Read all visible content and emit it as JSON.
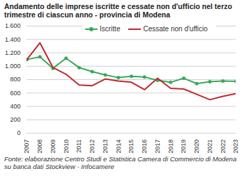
{
  "chart_data": {
    "type": "line",
    "title": "Andamento delle imprese iscritte e cessate non d'ufficio nel terzo trimestre di ciascun anno - provincia di Modena",
    "caption": "Fonte: elaborazione Centro Studi e Statistica Camera di Commercio di Modena su banca dati Stockview - Infocamere",
    "x": [
      2007,
      2008,
      2009,
      2010,
      2011,
      2012,
      2013,
      2014,
      2015,
      2016,
      2017,
      2018,
      2019,
      2020,
      2021,
      2022,
      2023
    ],
    "xlim": [
      2007,
      2023
    ],
    "xticks": [
      2007,
      2008,
      2009,
      2010,
      2011,
      2012,
      2013,
      2014,
      2015,
      2016,
      2017,
      2018,
      2019,
      2020,
      2021,
      2022,
      2023
    ],
    "ylim": [
      0,
      1600
    ],
    "yticks": [
      0,
      200,
      400,
      600,
      800,
      {
        "value": 1000,
        "label": "1.000"
      },
      {
        "value": 1200,
        "label": "1.200"
      },
      {
        "value": 1400,
        "label": "1.400"
      },
      {
        "value": 1600,
        "label": "1.600"
      }
    ],
    "grid": true,
    "legend": "top",
    "series": [
      {
        "name": "Iscritte",
        "color": "#3aa85a",
        "marker": "circle",
        "values": [
          1100,
          1140,
          970,
          1120,
          980,
          920,
          870,
          830,
          850,
          840,
          790,
          760,
          820,
          740,
          770,
          780,
          775
        ]
      },
      {
        "name": "Cessate non d'ufficio",
        "color": "#c0272d",
        "marker": "none",
        "values": [
          1100,
          1350,
          980,
          880,
          720,
          710,
          810,
          780,
          760,
          650,
          820,
          670,
          660,
          580,
          500,
          550,
          590
        ]
      }
    ]
  }
}
